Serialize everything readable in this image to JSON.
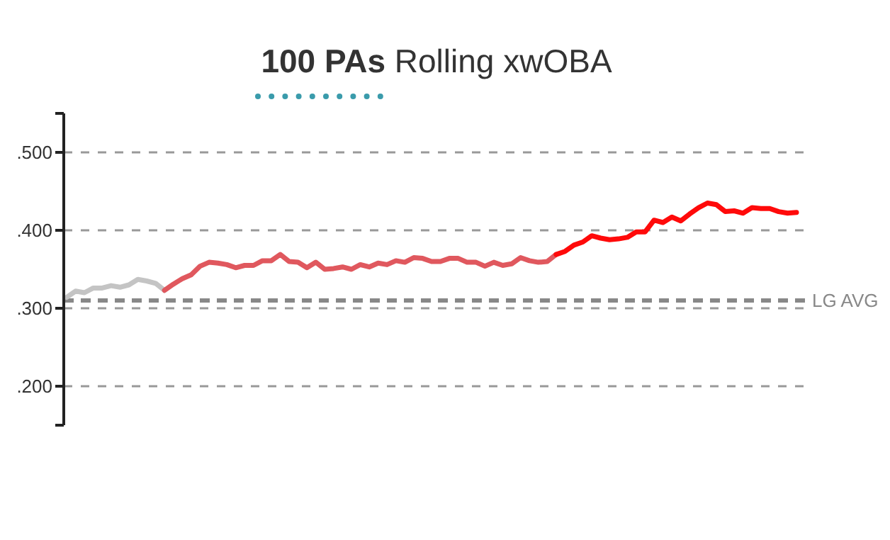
{
  "chart_data": {
    "type": "line",
    "title": "100 PAs Rolling xwOBA",
    "categories": [
      null,
      null,
      null,
      null,
      null,
      null,
      null,
      null,
      null,
      null,
      null,
      null,
      null,
      null,
      null,
      null,
      null,
      null,
      null,
      null,
      null,
      null,
      null,
      null,
      null,
      null,
      null,
      null,
      null,
      null,
      null,
      null,
      null,
      null,
      null,
      null,
      null,
      null,
      null,
      null,
      null,
      null,
      null,
      null,
      null,
      null,
      null,
      null,
      null,
      null,
      null,
      null,
      null,
      null,
      null,
      null,
      null,
      null,
      null,
      null,
      null,
      null,
      null,
      null,
      null,
      null,
      null,
      null,
      null,
      null,
      null,
      null,
      null,
      null,
      null,
      null,
      null,
      null,
      null,
      null,
      null,
      null,
      null
    ],
    "series": [
      {
        "color": "#c4c4c4",
        "values": [
          0.314,
          0.322,
          0.32,
          0.326,
          0.326,
          0.329,
          0.327,
          0.33,
          0.337,
          0.335,
          0.332,
          0.323,
          null,
          null,
          null,
          null,
          null,
          null,
          null,
          null,
          null,
          null,
          null,
          null,
          null,
          null,
          null,
          null,
          null,
          null,
          null,
          null,
          null,
          null,
          null,
          null,
          null,
          null,
          null,
          null,
          null,
          null,
          null,
          null,
          null,
          null,
          null,
          null,
          null,
          null,
          null,
          null,
          null,
          null,
          null,
          null,
          null,
          null,
          null,
          null,
          null,
          null,
          null,
          null,
          null,
          null,
          null,
          null,
          null,
          null,
          null,
          null,
          null,
          null,
          null,
          null,
          null,
          null,
          null,
          null,
          null,
          null,
          null
        ]
      },
      {
        "color": "#e0585e",
        "values": [
          null,
          null,
          null,
          null,
          null,
          null,
          null,
          null,
          null,
          null,
          null,
          0.323,
          0.331,
          0.338,
          0.343,
          0.354,
          0.359,
          0.358,
          0.356,
          0.352,
          0.355,
          0.355,
          0.361,
          0.361,
          0.369,
          0.36,
          0.359,
          0.352,
          0.359,
          0.35,
          0.351,
          0.353,
          0.35,
          0.356,
          0.353,
          0.358,
          0.356,
          0.361,
          0.359,
          0.365,
          0.364,
          0.36,
          0.36,
          0.364,
          0.364,
          0.359,
          0.359,
          0.354,
          0.359,
          0.355,
          0.357,
          0.365,
          0.361,
          0.359,
          0.36,
          0.369,
          null,
          null,
          null,
          null,
          null,
          null,
          null,
          null,
          null,
          null,
          null,
          null,
          null,
          null,
          null,
          null,
          null,
          null,
          null,
          null,
          null,
          null,
          null,
          null,
          null,
          null,
          null
        ]
      },
      {
        "color": "#ff0a0a",
        "values": [
          null,
          null,
          null,
          null,
          null,
          null,
          null,
          null,
          null,
          null,
          null,
          null,
          null,
          null,
          null,
          null,
          null,
          null,
          null,
          null,
          null,
          null,
          null,
          null,
          null,
          null,
          null,
          null,
          null,
          null,
          null,
          null,
          null,
          null,
          null,
          null,
          null,
          null,
          null,
          null,
          null,
          null,
          null,
          null,
          null,
          null,
          null,
          null,
          null,
          null,
          null,
          null,
          null,
          null,
          null,
          0.369,
          0.373,
          0.381,
          0.385,
          0.393,
          0.39,
          0.388,
          0.389,
          0.391,
          0.398,
          0.398,
          0.413,
          0.41,
          0.417,
          0.412,
          0.421,
          0.429,
          0.435,
          0.433,
          0.424,
          0.425,
          0.422,
          0.429,
          0.428,
          0.428,
          0.424,
          0.422,
          0.423
        ]
      }
    ],
    "ylim": [
      0.15,
      0.55
    ],
    "yticks": [
      {
        "value": 0.15,
        "label": null
      },
      {
        "value": 0.2,
        "label": ".200"
      },
      {
        "value": 0.3,
        "label": ".300"
      },
      {
        "value": 0.4,
        "label": ".400"
      },
      {
        "value": 0.5,
        "label": ".500"
      },
      {
        "value": 0.55,
        "label": null
      }
    ],
    "grid": "y",
    "legend": false,
    "marker": "none",
    "line_style": "solid",
    "ref_lines": [
      {
        "axis": "y",
        "value": 0.31,
        "label": "LG AVG",
        "color": "#888888",
        "line_style": "dashed"
      }
    ]
  }
}
